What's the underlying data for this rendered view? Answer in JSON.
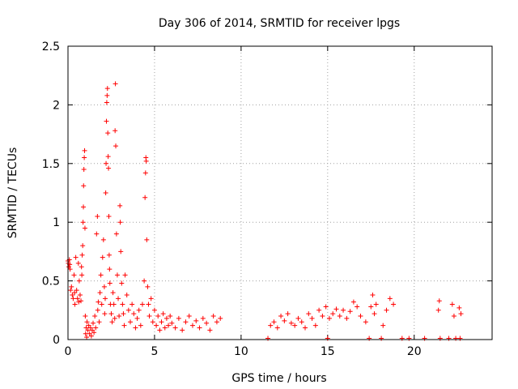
{
  "chart_data": {
    "type": "scatter",
    "title": "Day 306 of 2014, SRMTID for receiver lpgs",
    "xlabel": "GPS time / hours",
    "ylabel": "SRMTID / TECUs",
    "xlim": [
      0,
      24.5
    ],
    "ylim": [
      0,
      2.5
    ],
    "xticks": [
      0,
      5,
      10,
      15,
      20
    ],
    "yticks": [
      0,
      0.5,
      1,
      1.5,
      2,
      2.5
    ],
    "xtick_labels": [
      "0",
      "5",
      "10",
      "15",
      "20"
    ],
    "ytick_labels": [
      "0",
      "0.5",
      "1",
      "1.5",
      "2",
      "2.5"
    ],
    "grid": true,
    "marker": "+",
    "series": [
      {
        "name": "SRMTID",
        "color": "#ff0000",
        "points": [
          [
            0.0,
            0.67
          ],
          [
            0.02,
            0.65
          ],
          [
            0.05,
            0.62
          ],
          [
            0.08,
            0.68
          ],
          [
            0.1,
            0.64
          ],
          [
            0.12,
            0.6
          ],
          [
            0.15,
            0.42
          ],
          [
            0.2,
            0.45
          ],
          [
            0.25,
            0.38
          ],
          [
            0.3,
            0.35
          ],
          [
            0.35,
            0.55
          ],
          [
            0.38,
            0.4
          ],
          [
            0.4,
            0.3
          ],
          [
            0.45,
            0.7
          ],
          [
            0.5,
            0.42
          ],
          [
            0.55,
            0.35
          ],
          [
            0.6,
            0.65
          ],
          [
            0.62,
            0.32
          ],
          [
            0.65,
            0.5
          ],
          [
            0.7,
            0.38
          ],
          [
            0.75,
            0.33
          ],
          [
            0.78,
            0.62
          ],
          [
            0.8,
            0.55
          ],
          [
            0.82,
            0.72
          ],
          [
            0.85,
            0.8
          ],
          [
            0.87,
            1.0
          ],
          [
            0.89,
            1.13
          ],
          [
            0.9,
            1.31
          ],
          [
            0.92,
            1.45
          ],
          [
            0.94,
            1.55
          ],
          [
            0.96,
            1.61
          ],
          [
            0.98,
            0.95
          ],
          [
            1.0,
            0.2
          ],
          [
            1.02,
            0.05
          ],
          [
            1.05,
            0.1
          ],
          [
            1.08,
            0.02
          ],
          [
            1.1,
            0.15
          ],
          [
            1.15,
            0.08
          ],
          [
            1.2,
            0.12
          ],
          [
            1.25,
            0.05
          ],
          [
            1.3,
            0.1
          ],
          [
            1.35,
            0.03
          ],
          [
            1.4,
            0.08
          ],
          [
            1.45,
            0.14
          ],
          [
            1.5,
            0.06
          ],
          [
            1.55,
            0.2
          ],
          [
            1.6,
            0.1
          ],
          [
            1.65,
            0.9
          ],
          [
            1.7,
            1.05
          ],
          [
            1.72,
            0.25
          ],
          [
            1.75,
            0.32
          ],
          [
            1.8,
            0.15
          ],
          [
            1.85,
            0.4
          ],
          [
            1.9,
            0.55
          ],
          [
            1.95,
            0.3
          ],
          [
            2.0,
            0.7
          ],
          [
            2.05,
            0.85
          ],
          [
            2.1,
            0.45
          ],
          [
            2.12,
            0.22
          ],
          [
            2.15,
            0.35
          ],
          [
            2.18,
            1.25
          ],
          [
            2.2,
            1.5
          ],
          [
            2.22,
            1.86
          ],
          [
            2.24,
            2.02
          ],
          [
            2.26,
            2.08
          ],
          [
            2.28,
            2.14
          ],
          [
            2.3,
            1.76
          ],
          [
            2.32,
            1.56
          ],
          [
            2.34,
            1.46
          ],
          [
            2.36,
            1.05
          ],
          [
            2.38,
            0.72
          ],
          [
            2.4,
            0.6
          ],
          [
            2.42,
            0.48
          ],
          [
            2.45,
            0.3
          ],
          [
            2.5,
            0.22
          ],
          [
            2.55,
            0.15
          ],
          [
            2.6,
            0.4
          ],
          [
            2.65,
            0.3
          ],
          [
            2.7,
            0.18
          ],
          [
            2.72,
            1.78
          ],
          [
            2.74,
            2.18
          ],
          [
            2.76,
            1.65
          ],
          [
            2.8,
            0.9
          ],
          [
            2.85,
            0.55
          ],
          [
            2.9,
            0.35
          ],
          [
            2.95,
            0.2
          ],
          [
            3.0,
            1.14
          ],
          [
            3.02,
            1.0
          ],
          [
            3.05,
            0.75
          ],
          [
            3.1,
            0.48
          ],
          [
            3.15,
            0.3
          ],
          [
            3.2,
            0.22
          ],
          [
            3.25,
            0.12
          ],
          [
            3.3,
            0.55
          ],
          [
            3.4,
            0.38
          ],
          [
            3.5,
            0.25
          ],
          [
            3.6,
            0.15
          ],
          [
            3.7,
            0.3
          ],
          [
            3.8,
            0.22
          ],
          [
            3.9,
            0.1
          ],
          [
            4.0,
            0.18
          ],
          [
            4.1,
            0.25
          ],
          [
            4.2,
            0.12
          ],
          [
            4.3,
            0.3
          ],
          [
            4.4,
            0.5
          ],
          [
            4.45,
            1.21
          ],
          [
            4.48,
            1.42
          ],
          [
            4.5,
            1.55
          ],
          [
            4.52,
            1.52
          ],
          [
            4.55,
            0.85
          ],
          [
            4.6,
            0.45
          ],
          [
            4.65,
            0.3
          ],
          [
            4.7,
            0.2
          ],
          [
            4.8,
            0.35
          ],
          [
            4.9,
            0.15
          ],
          [
            5.0,
            0.25
          ],
          [
            5.1,
            0.12
          ],
          [
            5.2,
            0.2
          ],
          [
            5.3,
            0.08
          ],
          [
            5.4,
            0.15
          ],
          [
            5.5,
            0.22
          ],
          [
            5.6,
            0.1
          ],
          [
            5.7,
            0.18
          ],
          [
            5.8,
            0.12
          ],
          [
            5.9,
            0.2
          ],
          [
            6.0,
            0.14
          ],
          [
            6.2,
            0.1
          ],
          [
            6.4,
            0.18
          ],
          [
            6.6,
            0.08
          ],
          [
            6.8,
            0.15
          ],
          [
            7.0,
            0.2
          ],
          [
            7.2,
            0.12
          ],
          [
            7.4,
            0.16
          ],
          [
            7.6,
            0.1
          ],
          [
            7.8,
            0.18
          ],
          [
            8.0,
            0.14
          ],
          [
            8.2,
            0.08
          ],
          [
            8.4,
            0.2
          ],
          [
            8.6,
            0.15
          ],
          [
            8.8,
            0.18
          ],
          [
            11.55,
            0.01
          ],
          [
            11.7,
            0.12
          ],
          [
            11.9,
            0.15
          ],
          [
            12.1,
            0.1
          ],
          [
            12.3,
            0.2
          ],
          [
            12.5,
            0.16
          ],
          [
            12.7,
            0.22
          ],
          [
            12.9,
            0.14
          ],
          [
            13.1,
            0.12
          ],
          [
            13.3,
            0.18
          ],
          [
            13.5,
            0.15
          ],
          [
            13.7,
            0.1
          ],
          [
            13.9,
            0.22
          ],
          [
            14.1,
            0.18
          ],
          [
            14.3,
            0.12
          ],
          [
            14.5,
            0.25
          ],
          [
            14.7,
            0.2
          ],
          [
            14.9,
            0.28
          ],
          [
            15.0,
            0.01
          ],
          [
            15.1,
            0.18
          ],
          [
            15.3,
            0.22
          ],
          [
            15.5,
            0.26
          ],
          [
            15.7,
            0.2
          ],
          [
            15.9,
            0.25
          ],
          [
            16.1,
            0.18
          ],
          [
            16.3,
            0.24
          ],
          [
            16.5,
            0.32
          ],
          [
            16.7,
            0.28
          ],
          [
            16.9,
            0.2
          ],
          [
            17.2,
            0.15
          ],
          [
            17.4,
            0.01
          ],
          [
            17.5,
            0.28
          ],
          [
            17.6,
            0.38
          ],
          [
            17.7,
            0.22
          ],
          [
            17.8,
            0.3
          ],
          [
            18.1,
            0.01
          ],
          [
            18.2,
            0.12
          ],
          [
            18.4,
            0.25
          ],
          [
            18.6,
            0.35
          ],
          [
            18.8,
            0.3
          ],
          [
            19.3,
            0.01
          ],
          [
            19.7,
            0.01
          ],
          [
            20.6,
            0.01
          ],
          [
            21.4,
            0.25
          ],
          [
            21.45,
            0.33
          ],
          [
            21.5,
            0.01
          ],
          [
            22.0,
            0.01
          ],
          [
            22.2,
            0.3
          ],
          [
            22.3,
            0.2
          ],
          [
            22.4,
            0.01
          ],
          [
            22.6,
            0.27
          ],
          [
            22.65,
            0.01
          ],
          [
            22.7,
            0.22
          ]
        ]
      }
    ]
  }
}
